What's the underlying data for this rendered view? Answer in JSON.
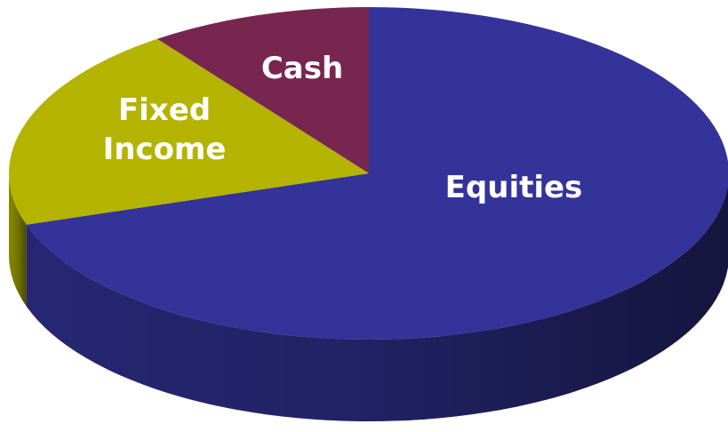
{
  "chart_data": {
    "type": "pie3d",
    "categories": [
      "Equities",
      "Fixed Income",
      "Cash"
    ],
    "values": [
      70,
      20,
      10
    ],
    "colors": [
      "#333399",
      "#b3b300",
      "#77264f"
    ]
  }
}
